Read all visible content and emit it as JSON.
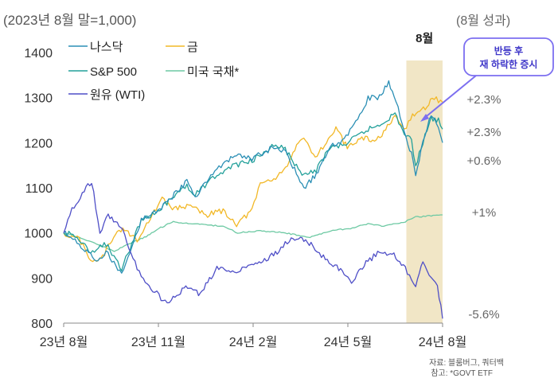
{
  "chart_data": {
    "type": "line",
    "subtitle": "(2023년 8월 말=1,000)",
    "perf_title": "(8월 성과)",
    "highlight_label": "8월",
    "callout": [
      "반등 후",
      "재 하락한 증시"
    ],
    "source_lines": [
      "자료: 블룸버그, 쿼터백",
      "참고: *GOVT ETF"
    ],
    "ylim": [
      800,
      1400
    ],
    "yticks": [
      800,
      900,
      1000,
      1100,
      1200,
      1300,
      1400
    ],
    "xticks": [
      "23년 8월",
      "23년 11월",
      "24년 2월",
      "24년 5월",
      "24년 8월"
    ],
    "x_range": [
      "2023-08-31",
      "2024-08-31"
    ],
    "highlight_range": [
      "2024-07-27",
      "2024-08-31"
    ],
    "grid": false,
    "legend_position": "top-left",
    "series": [
      {
        "name": "나스닥",
        "color": "#2b8fb5",
        "perf": "+0.6%",
        "points": [
          [
            "2023-08-31",
            1000
          ],
          [
            "2023-09-05",
            995
          ],
          [
            "2023-09-15",
            975
          ],
          [
            "2023-09-26",
            950
          ],
          [
            "2023-10-03",
            935
          ],
          [
            "2023-10-11",
            960
          ],
          [
            "2023-10-26",
            905
          ],
          [
            "2023-11-03",
            955
          ],
          [
            "2023-11-14",
            1030
          ],
          [
            "2023-11-30",
            1050
          ],
          [
            "2023-12-14",
            1080
          ],
          [
            "2023-12-28",
            1115
          ],
          [
            "2024-01-05",
            1080
          ],
          [
            "2024-01-24",
            1140
          ],
          [
            "2024-02-01",
            1150
          ],
          [
            "2024-02-12",
            1170
          ],
          [
            "2024-02-29",
            1165
          ],
          [
            "2024-03-08",
            1175
          ],
          [
            "2024-03-21",
            1190
          ],
          [
            "2024-04-01",
            1180
          ],
          [
            "2024-04-19",
            1100
          ],
          [
            "2024-05-01",
            1130
          ],
          [
            "2024-05-15",
            1190
          ],
          [
            "2024-05-28",
            1210
          ],
          [
            "2024-06-10",
            1250
          ],
          [
            "2024-06-20",
            1300
          ],
          [
            "2024-07-01",
            1300
          ],
          [
            "2024-07-10",
            1335
          ],
          [
            "2024-07-17",
            1295
          ],
          [
            "2024-07-25",
            1220
          ],
          [
            "2024-08-01",
            1175
          ],
          [
            "2024-08-05",
            1130
          ],
          [
            "2024-08-12",
            1200
          ],
          [
            "2024-08-20",
            1265
          ],
          [
            "2024-08-27",
            1230
          ],
          [
            "2024-08-31",
            1200
          ]
        ]
      },
      {
        "name": "금",
        "color": "#f2b827",
        "perf": "+2.3%",
        "points": [
          [
            "2023-08-31",
            1000
          ],
          [
            "2023-09-15",
            985
          ],
          [
            "2023-09-28",
            935
          ],
          [
            "2023-10-06",
            940
          ],
          [
            "2023-10-20",
            1000
          ],
          [
            "2023-10-27",
            1010
          ],
          [
            "2023-11-10",
            985
          ],
          [
            "2023-11-30",
            1060
          ],
          [
            "2023-12-04",
            1075
          ],
          [
            "2023-12-14",
            1055
          ],
          [
            "2023-12-28",
            1060
          ],
          [
            "2024-01-17",
            1040
          ],
          [
            "2024-02-01",
            1050
          ],
          [
            "2024-02-14",
            1020
          ],
          [
            "2024-02-29",
            1050
          ],
          [
            "2024-03-08",
            1110
          ],
          [
            "2024-03-21",
            1120
          ],
          [
            "2024-04-05",
            1155
          ],
          [
            "2024-04-12",
            1190
          ],
          [
            "2024-04-19",
            1210
          ],
          [
            "2024-04-30",
            1170
          ],
          [
            "2024-05-20",
            1230
          ],
          [
            "2024-05-31",
            1190
          ],
          [
            "2024-06-14",
            1210
          ],
          [
            "2024-06-28",
            1205
          ],
          [
            "2024-07-16",
            1255
          ],
          [
            "2024-07-25",
            1230
          ],
          [
            "2024-08-02",
            1260
          ],
          [
            "2024-08-16",
            1280
          ],
          [
            "2024-08-21",
            1300
          ],
          [
            "2024-08-31",
            1290
          ]
        ]
      },
      {
        "name": "S&P 500",
        "color": "#22a09a",
        "perf": "+2.3%",
        "points": [
          [
            "2023-08-31",
            1000
          ],
          [
            "2023-09-05",
            998
          ],
          [
            "2023-09-15",
            985
          ],
          [
            "2023-09-26",
            955
          ],
          [
            "2023-10-11",
            975
          ],
          [
            "2023-10-26",
            920
          ],
          [
            "2023-11-03",
            965
          ],
          [
            "2023-11-14",
            1030
          ],
          [
            "2023-11-30",
            1045
          ],
          [
            "2023-12-14",
            1080
          ],
          [
            "2023-12-28",
            1105
          ],
          [
            "2024-01-05",
            1085
          ],
          [
            "2024-01-24",
            1125
          ],
          [
            "2024-02-12",
            1150
          ],
          [
            "2024-02-29",
            1160
          ],
          [
            "2024-03-21",
            1195
          ],
          [
            "2024-04-01",
            1185
          ],
          [
            "2024-04-19",
            1125
          ],
          [
            "2024-05-01",
            1140
          ],
          [
            "2024-05-15",
            1190
          ],
          [
            "2024-05-28",
            1195
          ],
          [
            "2024-06-10",
            1215
          ],
          [
            "2024-06-20",
            1230
          ],
          [
            "2024-07-01",
            1240
          ],
          [
            "2024-07-16",
            1265
          ],
          [
            "2024-07-25",
            1220
          ],
          [
            "2024-08-01",
            1205
          ],
          [
            "2024-08-05",
            1150
          ],
          [
            "2024-08-12",
            1200
          ],
          [
            "2024-08-20",
            1255
          ],
          [
            "2024-08-27",
            1250
          ],
          [
            "2024-08-31",
            1230
          ]
        ]
      },
      {
        "name": "미국 국채*",
        "color": "#6dc9a3",
        "perf": "+1%",
        "points": [
          [
            "2023-08-31",
            1000
          ],
          [
            "2023-09-15",
            990
          ],
          [
            "2023-10-02",
            975
          ],
          [
            "2023-10-19",
            960
          ],
          [
            "2023-11-01",
            975
          ],
          [
            "2023-11-17",
            990
          ],
          [
            "2023-12-01",
            1010
          ],
          [
            "2023-12-15",
            1025
          ],
          [
            "2024-01-02",
            1020
          ],
          [
            "2024-02-01",
            1015
          ],
          [
            "2024-02-15",
            1000
          ],
          [
            "2024-03-08",
            1005
          ],
          [
            "2024-04-01",
            1000
          ],
          [
            "2024-04-25",
            990
          ],
          [
            "2024-05-15",
            1005
          ],
          [
            "2024-06-03",
            1010
          ],
          [
            "2024-06-20",
            1020
          ],
          [
            "2024-07-05",
            1015
          ],
          [
            "2024-07-26",
            1025
          ],
          [
            "2024-08-05",
            1035
          ],
          [
            "2024-08-20",
            1038
          ],
          [
            "2024-08-31",
            1040
          ]
        ]
      },
      {
        "name": "원유 (WTI)",
        "color": "#4f4fc7",
        "perf": "-5.6%",
        "points": [
          [
            "2023-08-31",
            1000
          ],
          [
            "2023-09-08",
            1050
          ],
          [
            "2023-09-18",
            1090
          ],
          [
            "2023-09-27",
            1115
          ],
          [
            "2023-10-05",
            1000
          ],
          [
            "2023-10-13",
            1040
          ],
          [
            "2023-10-27",
            1010
          ],
          [
            "2023-11-06",
            940
          ],
          [
            "2023-11-16",
            900
          ],
          [
            "2023-11-27",
            870
          ],
          [
            "2023-12-05",
            850
          ],
          [
            "2023-12-13",
            850
          ],
          [
            "2023-12-27",
            880
          ],
          [
            "2024-01-10",
            865
          ],
          [
            "2024-01-26",
            920
          ],
          [
            "2024-02-12",
            915
          ],
          [
            "2024-02-27",
            930
          ],
          [
            "2024-03-12",
            940
          ],
          [
            "2024-03-26",
            960
          ],
          [
            "2024-04-05",
            985
          ],
          [
            "2024-04-12",
            990
          ],
          [
            "2024-04-26",
            975
          ],
          [
            "2024-05-06",
            950
          ],
          [
            "2024-05-21",
            925
          ],
          [
            "2024-06-04",
            890
          ],
          [
            "2024-06-18",
            935
          ],
          [
            "2024-07-03",
            960
          ],
          [
            "2024-07-15",
            950
          ],
          [
            "2024-07-26",
            920
          ],
          [
            "2024-08-05",
            880
          ],
          [
            "2024-08-12",
            935
          ],
          [
            "2024-08-20",
            900
          ],
          [
            "2024-08-26",
            885
          ],
          [
            "2024-08-31",
            810
          ]
        ]
      }
    ]
  }
}
